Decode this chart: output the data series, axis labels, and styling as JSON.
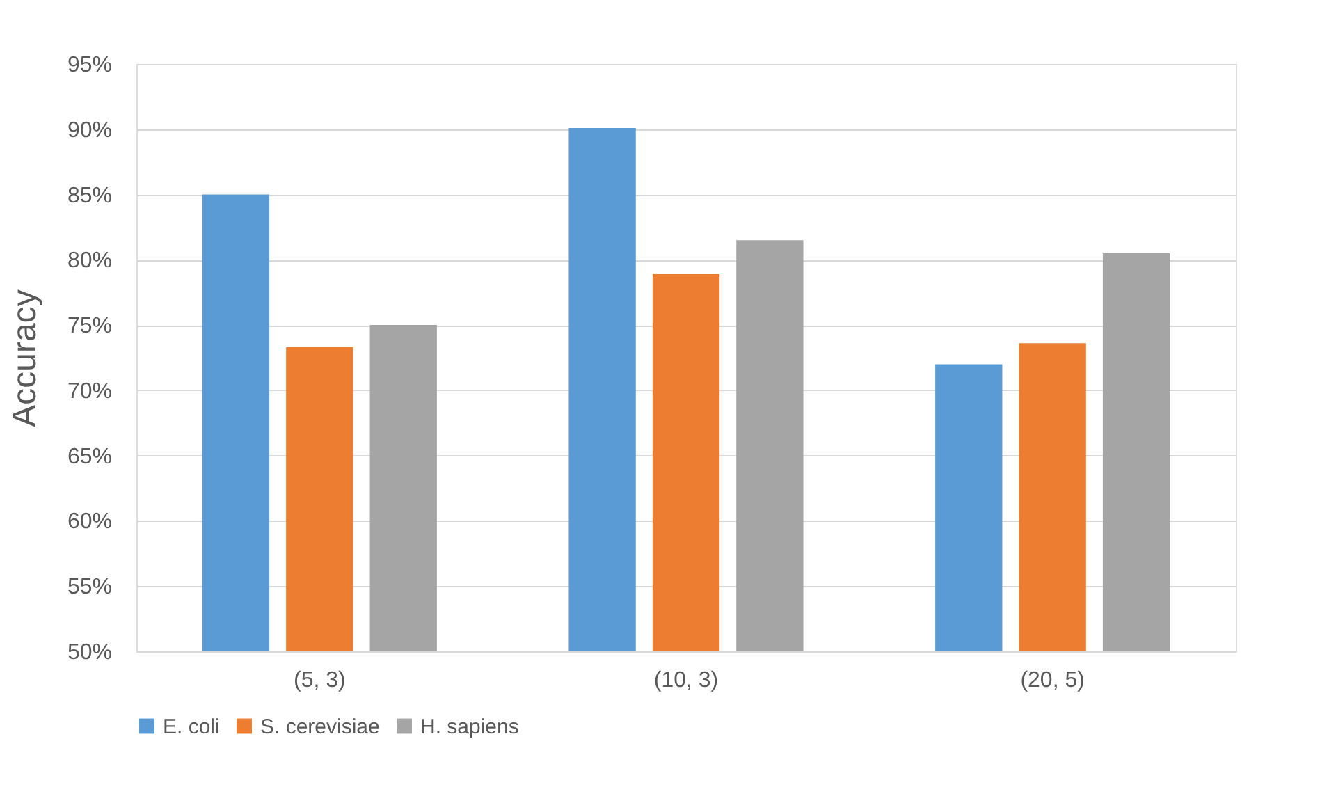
{
  "chart_data": {
    "type": "bar",
    "ylabel": "Accuracy",
    "categories": [
      "(5, 3)",
      "(10, 3)",
      "(20, 5)"
    ],
    "series": [
      {
        "name": "E. coli",
        "color": "#5b9bd5",
        "values": [
          85.0,
          90.1,
          72.0
        ]
      },
      {
        "name": "S. cerevisiae",
        "color": "#ed7d31",
        "values": [
          73.3,
          78.9,
          73.6
        ]
      },
      {
        "name": "H. sapiens",
        "color": "#a5a5a5",
        "values": [
          75.0,
          81.5,
          80.5
        ]
      }
    ],
    "ylim": [
      50,
      95
    ],
    "yticks": [
      {
        "value": 50,
        "label": "50%"
      },
      {
        "value": 55,
        "label": "55%"
      },
      {
        "value": 60,
        "label": "60%"
      },
      {
        "value": 65,
        "label": "65%"
      },
      {
        "value": 70,
        "label": "70%"
      },
      {
        "value": 75,
        "label": "75%"
      },
      {
        "value": 80,
        "label": "80%"
      },
      {
        "value": 85,
        "label": "85%"
      },
      {
        "value": 90,
        "label": "90%"
      },
      {
        "value": 95,
        "label": "95%"
      }
    ],
    "grid": "y",
    "legend": "bottom"
  }
}
